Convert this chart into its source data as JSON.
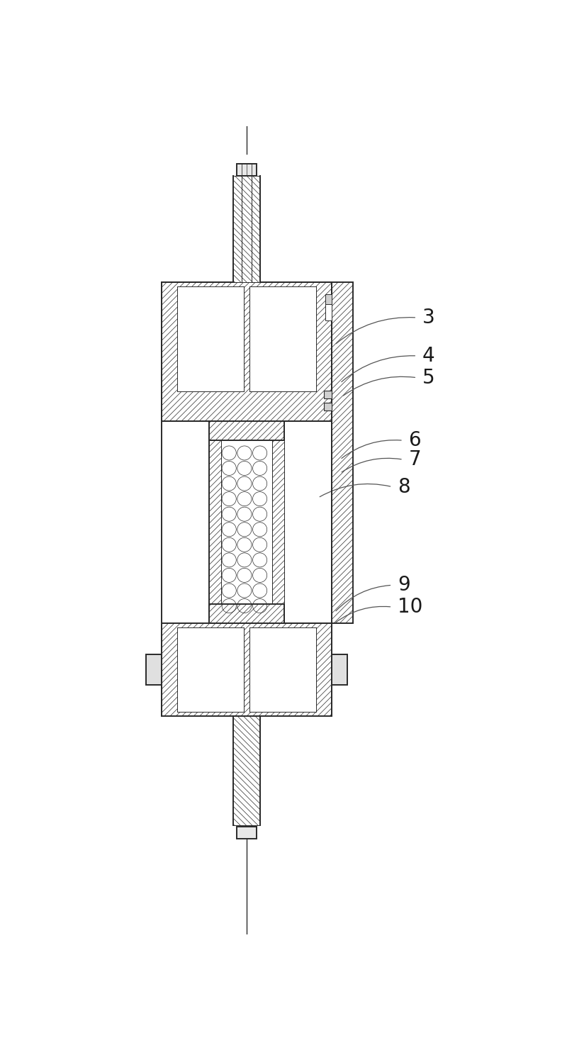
{
  "fig_width": 8.0,
  "fig_height": 14.81,
  "bg_color": "#ffffff",
  "line_color": "#2a2a2a",
  "label_color": "#1a1a1a",
  "labels": [
    "3",
    "4",
    "5",
    "6",
    "7",
    "8",
    "9",
    "10"
  ],
  "label_fontsize": 20,
  "lw_main": 1.4,
  "lw_thin": 0.7,
  "lw_hatch": 0.5
}
